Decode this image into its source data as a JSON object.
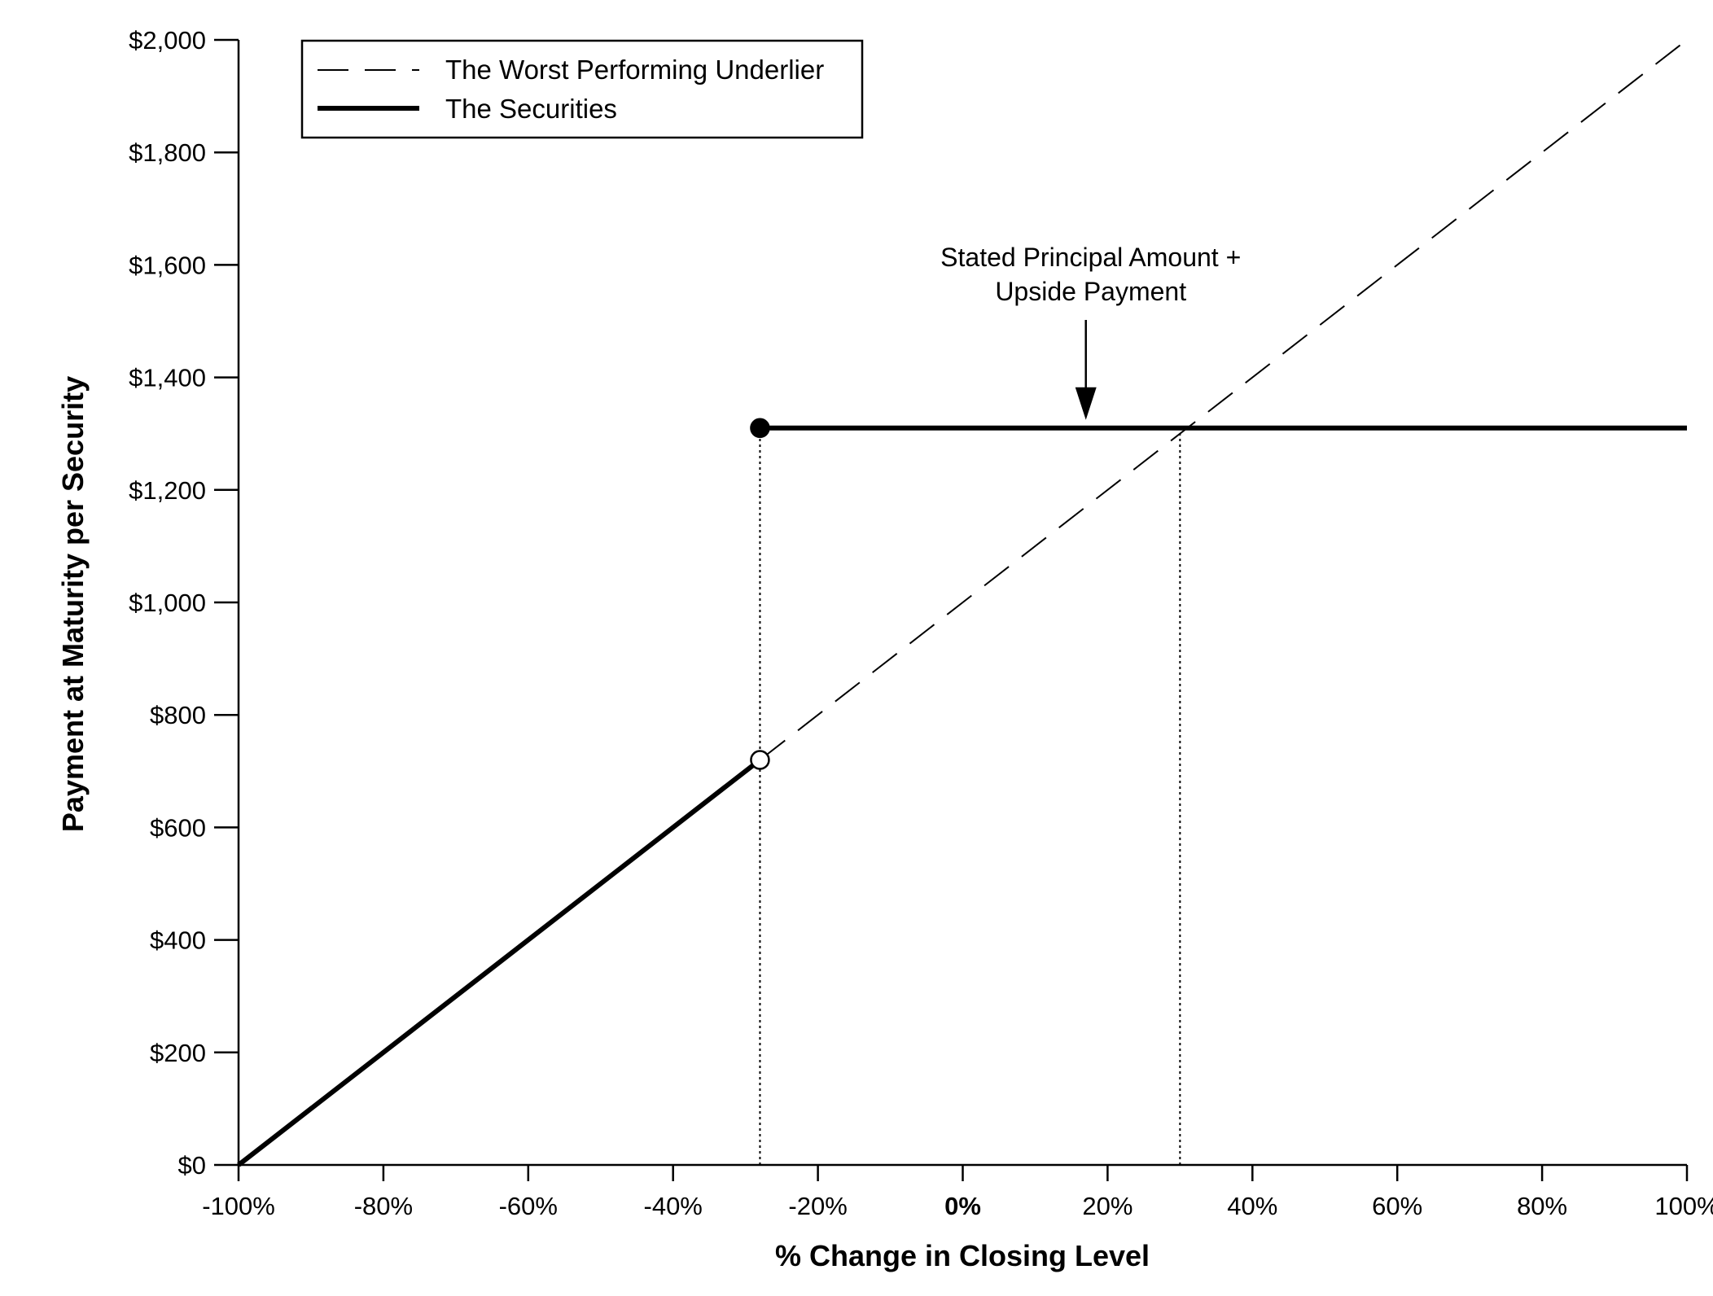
{
  "chart_data": {
    "type": "line",
    "title": "",
    "xlabel": "% Change in Closing Level",
    "ylabel": "Payment at Maturity per Security",
    "xlim": [
      -100,
      100
    ],
    "ylim": [
      0,
      2000
    ],
    "x_ticks": [
      -100,
      -80,
      -60,
      -40,
      -20,
      0,
      20,
      40,
      60,
      80,
      100
    ],
    "x_tick_labels": [
      "-100%",
      "-80%",
      "-60%",
      "-40%",
      "-20%",
      "0%",
      "20%",
      "40%",
      "60%",
      "80%",
      "100%"
    ],
    "y_ticks": [
      0,
      200,
      400,
      600,
      800,
      1000,
      1200,
      1400,
      1600,
      1800,
      2000
    ],
    "y_tick_labels": [
      "$0",
      "$200",
      "$400",
      "$600",
      "$800",
      "$1,000",
      "$1,200",
      "$1,400",
      "$1,600",
      "$1,800",
      "$2,000"
    ],
    "grid": false,
    "legend_position": "top-left",
    "series": [
      {
        "name": "The Worst Performing Underlier",
        "style": "dashed",
        "color": "#000000",
        "points": [
          {
            "x": -100,
            "y": 0
          },
          {
            "x": 100,
            "y": 2000
          }
        ]
      },
      {
        "name": "The Securities",
        "style": "solid-thick",
        "color": "#000000",
        "segments": [
          [
            {
              "x": -100,
              "y": 0
            },
            {
              "x": -28,
              "y": 720
            }
          ],
          [
            {
              "x": -28,
              "y": 1310
            },
            {
              "x": 100,
              "y": 1310
            }
          ]
        ]
      }
    ],
    "markers": [
      {
        "x": -28,
        "y": 1310,
        "fill": "filled"
      },
      {
        "x": -28,
        "y": 720,
        "fill": "open"
      }
    ],
    "reference_lines": [
      {
        "x": -28,
        "y_from": 0,
        "y_to": 1310,
        "style": "dotted"
      },
      {
        "x": 30,
        "y_from": 0,
        "y_to": 1310,
        "style": "dotted"
      }
    ],
    "annotations": [
      {
        "lines": [
          "Stated Principal Amount +",
          "Upside Payment"
        ],
        "arrow_to": {
          "x": 17,
          "y": 1310
        }
      }
    ]
  }
}
